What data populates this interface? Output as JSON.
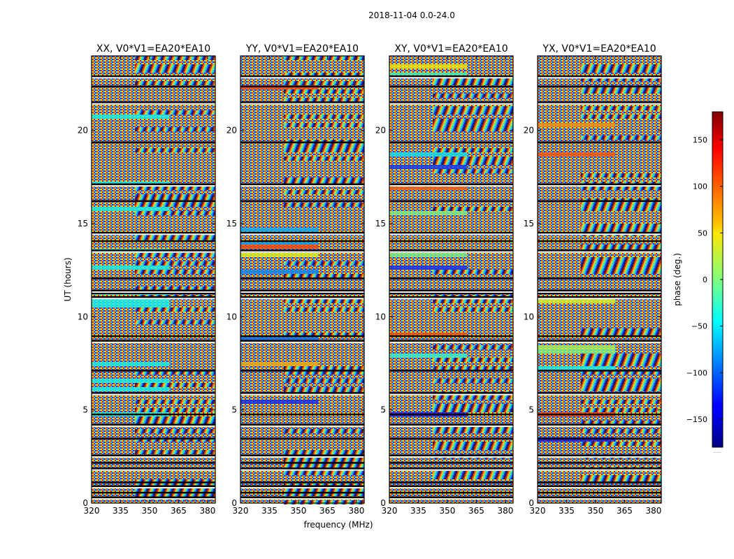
{
  "figure": {
    "suptitle": "2018-11-04 0.0-24.0"
  },
  "chart_data": {
    "type": "heatmap",
    "description_title": "2018-11-04 0.0-24.0",
    "xlabel": "frequency (MHz)",
    "ylabel": "UT (hours)",
    "xlim": [
      320,
      384
    ],
    "ylim": [
      0,
      24
    ],
    "xticks": [
      320,
      335,
      350,
      365,
      380
    ],
    "yticks": [
      0,
      5,
      10,
      15,
      20
    ],
    "panels": [
      {
        "title": "XX, V0*V1=EA20*EA10",
        "polarization": "XX"
      },
      {
        "title": "YY, V0*V1=EA20*EA10",
        "polarization": "YY"
      },
      {
        "title": "XY, V0*V1=EA20*EA10",
        "polarization": "XY"
      },
      {
        "title": "YX, V0*V1=EA20*EA10",
        "polarization": "YX"
      }
    ],
    "colorbar": {
      "label": "phase (deg.)",
      "range": [
        -180,
        180
      ],
      "ticks": [
        150,
        100,
        50,
        0,
        -50,
        -100,
        -150
      ],
      "tick_labels": [
        "150",
        "100",
        "50",
        "0",
        "−50",
        "−100",
        "−150"
      ],
      "colormap": "jet",
      "footer": "......"
    },
    "flagged_gaps_hours": [
      0.3,
      0.55,
      0.9,
      1.1,
      1.85,
      2.15,
      2.55,
      3.45,
      4.2,
      4.75,
      5.9,
      7.1,
      8.7,
      8.95,
      11.05,
      11.25,
      11.4,
      12.05,
      13.55,
      14.05,
      14.5,
      16.2,
      17.1,
      19.35,
      21.5,
      22.35,
      22.9
    ]
  }
}
